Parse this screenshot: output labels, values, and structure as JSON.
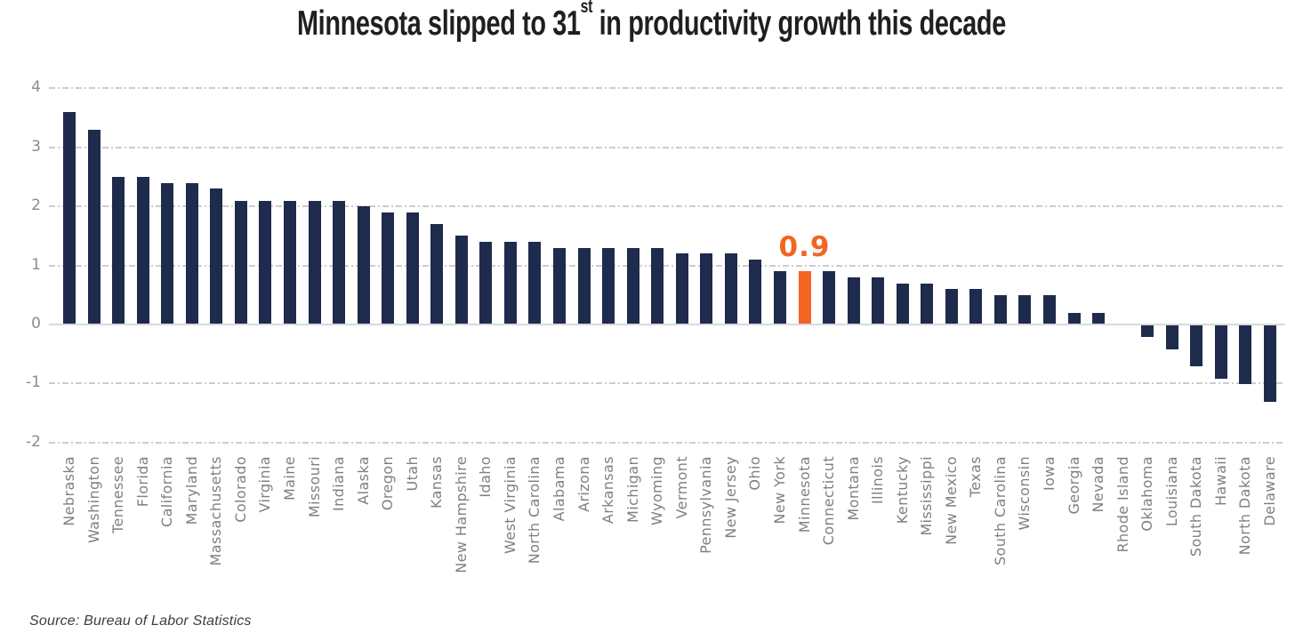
{
  "title": {
    "prefix": "Minnesota slipped to 31",
    "superscript": "st",
    "suffix": " in productivity growth this decade"
  },
  "source_note": "Source: Bureau of Labor Statistics",
  "chart_data": {
    "type": "bar",
    "title": "Minnesota slipped to 31st in productivity growth this decade",
    "xlabel": "",
    "ylabel": "",
    "ylim": [
      -2,
      4
    ],
    "yticks": [
      4,
      3,
      2,
      1,
      0,
      -1,
      -2
    ],
    "grid": "horizontal dash-dot gridlines, solid zero axis",
    "legend": "none",
    "highlight_category": "Minnesota",
    "highlight_label": "0.9",
    "categories": [
      "Nebraska",
      "Washington",
      "Tennessee",
      "Florida",
      "California",
      "Maryland",
      "Massachusetts",
      "Colorado",
      "Virginia",
      "Maine",
      "Missouri",
      "Indiana",
      "Alaska",
      "Oregon",
      "Utah",
      "Kansas",
      "New Hampshire",
      "Idaho",
      "West Virginia",
      "North Carolina",
      "Alabama",
      "Arizona",
      "Arkansas",
      "Michigan",
      "Wyoming",
      "Vermont",
      "Pennsylvania",
      "New Jersey",
      "Ohio",
      "New York",
      "Minnesota",
      "Connecticut",
      "Montana",
      "Illinois",
      "Kentucky",
      "Mississippi",
      "New Mexico",
      "Texas",
      "South Carolina",
      "Wisconsin",
      "Iowa",
      "Georgia",
      "Nevada",
      "Rhode Island",
      "Oklahoma",
      "Louisiana",
      "South Dakota",
      "Hawaii",
      "North Dakota",
      "Delaware"
    ],
    "values": [
      3.6,
      3.3,
      2.5,
      2.5,
      2.4,
      2.4,
      2.3,
      2.1,
      2.1,
      2.1,
      2.1,
      2.1,
      2.0,
      1.9,
      1.9,
      1.7,
      1.5,
      1.4,
      1.4,
      1.4,
      1.3,
      1.3,
      1.3,
      1.3,
      1.3,
      1.2,
      1.2,
      1.2,
      1.1,
      0.9,
      0.9,
      0.9,
      0.8,
      0.8,
      0.7,
      0.7,
      0.6,
      0.6,
      0.5,
      0.5,
      0.5,
      0.2,
      0.2,
      0.0,
      -0.2,
      -0.4,
      -0.7,
      -0.9,
      -1.0,
      -1.3
    ],
    "colors": {
      "bar": "#1e2b4d",
      "highlight": "#f26522",
      "gridline": "#cccccc",
      "zero_axis": "#d9d9d9",
      "tick_label": "#8c8c8c",
      "category_label": "#7f7f7f",
      "title_text": "#1f1f1f",
      "source_text": "#3d3d3d"
    }
  }
}
